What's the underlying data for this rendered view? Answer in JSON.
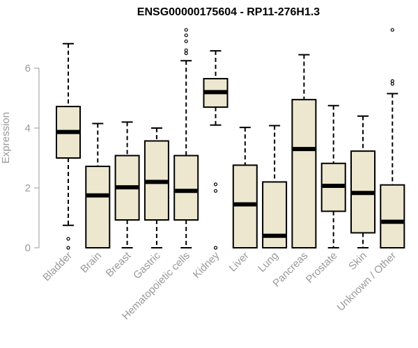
{
  "chart_data": {
    "type": "boxplot",
    "title": "ENSG00000175604 - RP11-276H1.3",
    "ylabel": "Expression",
    "xlabel": "",
    "ylim": [
      0,
      7.4
    ],
    "yticks": [
      0,
      2,
      4,
      6
    ],
    "box_color": "#ede7cf",
    "categories": [
      "Bladder",
      "Brain",
      "Breast",
      "Gastric",
      "Hematopoietic cells",
      "Kidney",
      "Liver",
      "Lung",
      "Pancreas",
      "Prostate",
      "Skin",
      "Unknown / Other"
    ],
    "boxes": [
      {
        "min": 0.75,
        "q1": 3.0,
        "median": 3.87,
        "q3": 4.72,
        "max": 6.82,
        "outliers": [
          0.0,
          0.3
        ]
      },
      {
        "min": 0.0,
        "q1": 0.0,
        "median": 1.75,
        "q3": 2.72,
        "max": 4.15,
        "outliers": []
      },
      {
        "min": 0.0,
        "q1": 0.93,
        "median": 2.02,
        "q3": 3.08,
        "max": 4.2,
        "outliers": []
      },
      {
        "min": 0.0,
        "q1": 0.93,
        "median": 2.2,
        "q3": 3.57,
        "max": 4.0,
        "outliers": []
      },
      {
        "min": 0.0,
        "q1": 0.93,
        "median": 1.9,
        "q3": 3.08,
        "max": 6.25,
        "outliers": [
          6.5,
          6.6,
          6.9,
          7.1,
          7.28
        ]
      },
      {
        "min": 4.1,
        "q1": 4.7,
        "median": 5.2,
        "q3": 5.65,
        "max": 6.58,
        "outliers": [
          0.0,
          1.9,
          2.12
        ]
      },
      {
        "min": 0.0,
        "q1": 0.0,
        "median": 1.45,
        "q3": 2.76,
        "max": 4.02,
        "outliers": []
      },
      {
        "min": 0.0,
        "q1": 0.0,
        "median": 0.4,
        "q3": 2.2,
        "max": 4.08,
        "outliers": []
      },
      {
        "min": 0.0,
        "q1": 0.0,
        "median": 3.3,
        "q3": 4.95,
        "max": 6.45,
        "outliers": []
      },
      {
        "min": 0.0,
        "q1": 1.22,
        "median": 2.07,
        "q3": 2.82,
        "max": 4.75,
        "outliers": []
      },
      {
        "min": 0.0,
        "q1": 0.5,
        "median": 1.83,
        "q3": 3.23,
        "max": 4.4,
        "outliers": []
      },
      {
        "min": 0.0,
        "q1": 0.0,
        "median": 0.87,
        "q3": 2.1,
        "max": 5.15,
        "outliers": [
          5.48,
          5.57,
          7.28
        ]
      }
    ]
  }
}
